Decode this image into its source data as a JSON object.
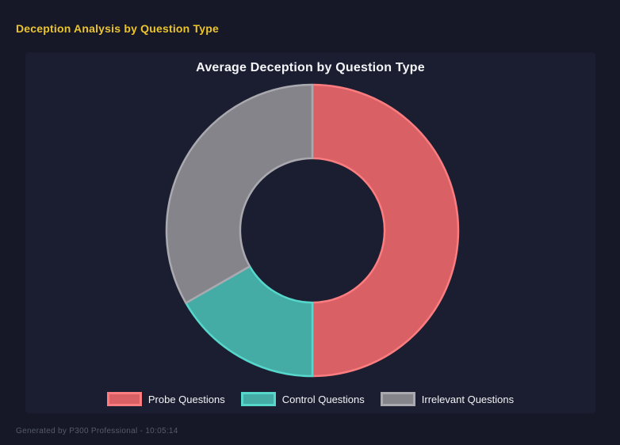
{
  "page": {
    "title": "Deception Analysis by Question Type",
    "footer": "Generated by P300 Professional - 10:05:14"
  },
  "colors": {
    "page_bg": "#161827",
    "panel_bg": "#1b1e30",
    "accent_yellow": "#ecc42e",
    "chart_title_text": "#f4f5f8",
    "legend_text": "#f2f3f6",
    "footer_text": "#565b6a"
  },
  "chart_data": {
    "type": "pie",
    "subtype": "doughnut",
    "title": "Average Deception by Question Type",
    "legend_position": "bottom",
    "start_angle_deg": 0,
    "direction": "clockwise",
    "cutout_percent": 50,
    "series": [
      {
        "name": "Probe Questions",
        "value_percent": 50.0,
        "fill": "#d96065",
        "border": "#fb7d80"
      },
      {
        "name": "Control Questions",
        "value_percent": 16.7,
        "fill": "#45aba5",
        "border": "#55d7cb"
      },
      {
        "name": "Irrelevant Questions",
        "value_percent": 33.3,
        "fill": "#84848a",
        "border": "#a9a9af"
      }
    ]
  }
}
